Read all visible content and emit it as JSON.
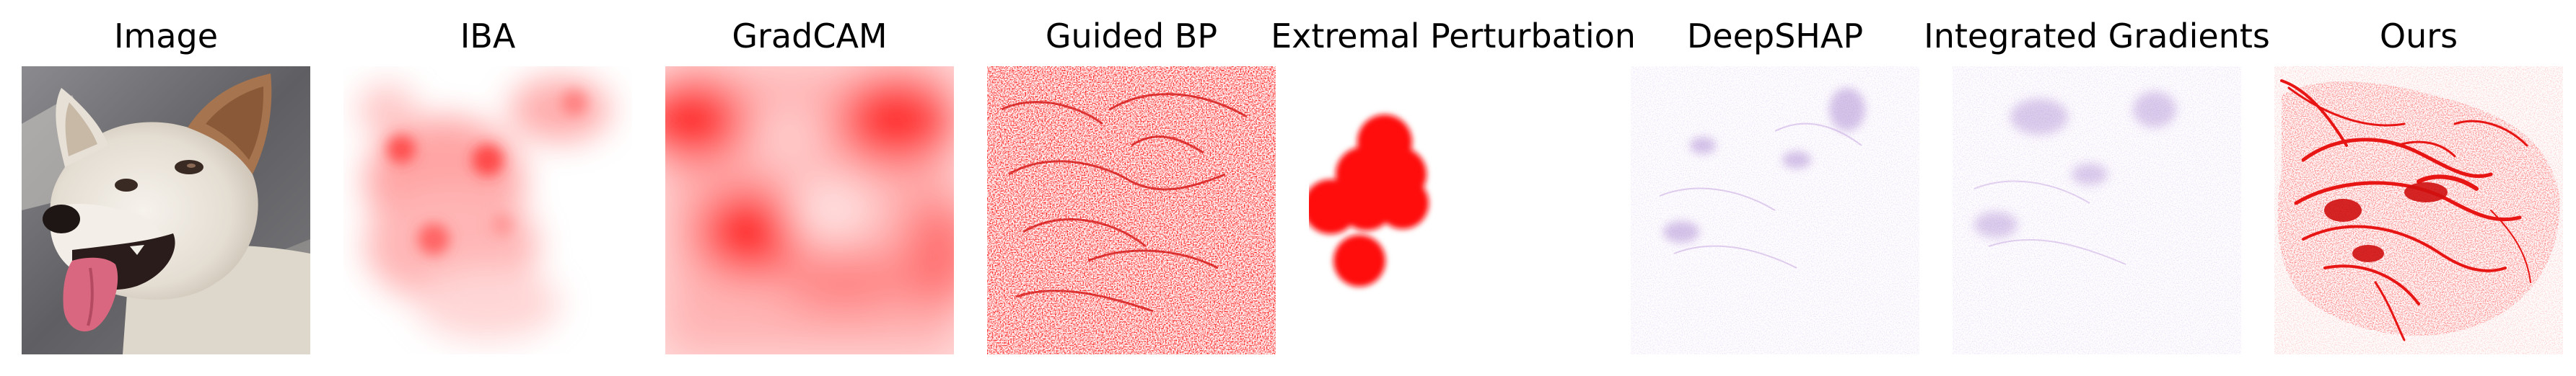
{
  "panels": [
    {
      "key": "image",
      "title": "Image"
    },
    {
      "key": "iba",
      "title": "IBA"
    },
    {
      "key": "gradcam",
      "title": "GradCAM"
    },
    {
      "key": "guided_bp",
      "title": "Guided BP"
    },
    {
      "key": "extremal",
      "title": "Extremal Perturbation"
    },
    {
      "key": "deepshap",
      "title": "DeepSHAP"
    },
    {
      "key": "ig",
      "title": "Integrated Gradients"
    },
    {
      "key": "ours",
      "title": "Ours"
    }
  ],
  "colors": {
    "attribution_red": "#ff0000",
    "attribution_purple": "#7b4fb5",
    "background": "#ffffff",
    "fur": "#e9e4dc",
    "ear_brown": "#9a6a44",
    "tongue": "#d9677f",
    "mouth": "#2a1c1a",
    "photo_bg": "#76767a"
  }
}
